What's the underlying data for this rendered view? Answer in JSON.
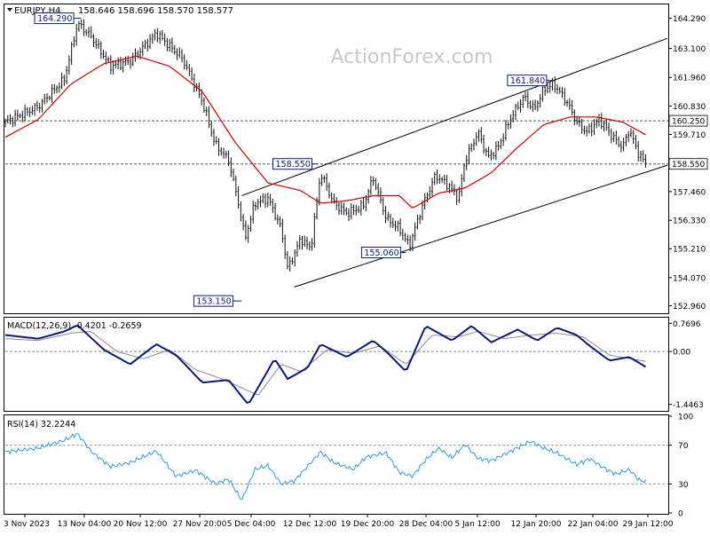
{
  "header": {
    "symbol": "EURJPY,H4",
    "ohlc": "158.646 158.696 158.570 158.577"
  },
  "watermark": "ActionForex.com",
  "colors": {
    "background": "#ffffff",
    "candle": "#111111",
    "ma": "#cc0000",
    "macd_main": "#0a1a7a",
    "macd_signal": "#8c8c8c",
    "rsi": "#3399e6",
    "label_box_fill": "#0a1e78",
    "grid_dash": "#555555",
    "watermark": "#c8c8c8"
  },
  "chart_data": [
    {
      "type": "candlestick",
      "panel": "price",
      "title": "EURJPY,H4",
      "y_ticks": [
        "164.290",
        "163.100",
        "161.960",
        "160.830",
        "159.710",
        "158.550",
        "157.460",
        "156.330",
        "155.210",
        "154.070",
        "152.960"
      ],
      "ylim": [
        152.7,
        164.8
      ],
      "x_ticks": [
        "3 Nov 2023",
        "13 Nov 04:00",
        "20 Nov 12:00",
        "27 Nov 20:00",
        "5 Dec 04:00",
        "12 Dec 12:00",
        "19 Dec 20:00",
        "28 Dec 04:00",
        "5 Jan 12:00",
        "12 Jan 20:00",
        "22 Jan 04:00",
        "29 Jan 12:00"
      ],
      "key_points": [
        {
          "label": "164.290",
          "value": 164.29,
          "bar": 0.115
        },
        {
          "label": "153.150",
          "value": 153.15,
          "bar": 0.36
        },
        {
          "label": "158.550",
          "value": 158.55,
          "bar": 0.475
        },
        {
          "label": "155.060",
          "value": 155.06,
          "bar": 0.61
        },
        {
          "label": "161.840",
          "value": 161.84,
          "bar": 0.835
        }
      ],
      "horizontal_levels": [
        {
          "label": "160.250",
          "value": 160.25
        },
        {
          "label": "158.550",
          "value": 158.55
        }
      ],
      "channel": {
        "upper": [
          [
            0.36,
            157.3
          ],
          [
            1.0,
            163.5
          ]
        ],
        "lower": [
          [
            0.44,
            153.7
          ],
          [
            1.0,
            158.5
          ]
        ]
      },
      "waypoints": [
        [
          0.0,
          160.2
        ],
        [
          0.05,
          160.8
        ],
        [
          0.09,
          161.9
        ],
        [
          0.11,
          164.1
        ],
        [
          0.13,
          163.6
        ],
        [
          0.16,
          162.4
        ],
        [
          0.19,
          162.6
        ],
        [
          0.23,
          163.7
        ],
        [
          0.27,
          162.7
        ],
        [
          0.3,
          161.0
        ],
        [
          0.32,
          159.3
        ],
        [
          0.34,
          158.7
        ],
        [
          0.355,
          157.0
        ],
        [
          0.365,
          155.6
        ],
        [
          0.38,
          157.0
        ],
        [
          0.4,
          157.2
        ],
        [
          0.42,
          156.0
        ],
        [
          0.43,
          154.4
        ],
        [
          0.45,
          155.6
        ],
        [
          0.465,
          155.2
        ],
        [
          0.48,
          158.2
        ],
        [
          0.5,
          157.0
        ],
        [
          0.52,
          156.6
        ],
        [
          0.545,
          156.9
        ],
        [
          0.56,
          158.0
        ],
        [
          0.58,
          156.4
        ],
        [
          0.6,
          156.0
        ],
        [
          0.615,
          155.3
        ],
        [
          0.635,
          156.9
        ],
        [
          0.655,
          158.1
        ],
        [
          0.675,
          157.7
        ],
        [
          0.69,
          157.2
        ],
        [
          0.7,
          158.7
        ],
        [
          0.72,
          159.8
        ],
        [
          0.735,
          158.8
        ],
        [
          0.75,
          159.2
        ],
        [
          0.77,
          160.4
        ],
        [
          0.79,
          161.2
        ],
        [
          0.805,
          160.7
        ],
        [
          0.82,
          161.5
        ],
        [
          0.835,
          161.7
        ],
        [
          0.855,
          161.0
        ],
        [
          0.87,
          160.2
        ],
        [
          0.885,
          159.8
        ],
        [
          0.905,
          160.3
        ],
        [
          0.925,
          159.6
        ],
        [
          0.94,
          159.2
        ],
        [
          0.95,
          159.9
        ],
        [
          0.965,
          158.9
        ],
        [
          0.975,
          158.6
        ]
      ],
      "ma_waypoints": [
        [
          0.0,
          159.6
        ],
        [
          0.05,
          160.3
        ],
        [
          0.1,
          161.7
        ],
        [
          0.15,
          162.5
        ],
        [
          0.2,
          162.8
        ],
        [
          0.25,
          162.4
        ],
        [
          0.3,
          161.4
        ],
        [
          0.35,
          159.4
        ],
        [
          0.4,
          157.8
        ],
        [
          0.45,
          157.5
        ],
        [
          0.48,
          157.0
        ],
        [
          0.52,
          157.1
        ],
        [
          0.56,
          157.3
        ],
        [
          0.6,
          157.3
        ],
        [
          0.62,
          156.8
        ],
        [
          0.66,
          157.4
        ],
        [
          0.7,
          157.6
        ],
        [
          0.74,
          158.2
        ],
        [
          0.78,
          159.2
        ],
        [
          0.82,
          160.1
        ],
        [
          0.86,
          160.4
        ],
        [
          0.9,
          160.4
        ],
        [
          0.94,
          160.2
        ],
        [
          0.975,
          159.7
        ]
      ]
    },
    {
      "type": "line",
      "panel": "macd",
      "title": "MACD(12,26,9) -0.4201 -0.2659",
      "y_ticks": [
        "0.7696",
        "0.00",
        "-1.4463"
      ],
      "ylim": [
        -1.6,
        0.9
      ],
      "series": [
        {
          "name": "MACD",
          "waypoints": [
            [
              0.0,
              0.45
            ],
            [
              0.05,
              0.35
            ],
            [
              0.09,
              0.55
            ],
            [
              0.11,
              0.72
            ],
            [
              0.15,
              0.05
            ],
            [
              0.19,
              -0.35
            ],
            [
              0.23,
              0.2
            ],
            [
              0.26,
              -0.1
            ],
            [
              0.3,
              -0.85
            ],
            [
              0.34,
              -0.78
            ],
            [
              0.37,
              -1.45
            ],
            [
              0.41,
              -0.2
            ],
            [
              0.43,
              -0.75
            ],
            [
              0.46,
              -0.45
            ],
            [
              0.48,
              0.2
            ],
            [
              0.52,
              -0.15
            ],
            [
              0.56,
              0.3
            ],
            [
              0.58,
              0.0
            ],
            [
              0.61,
              -0.55
            ],
            [
              0.64,
              0.7
            ],
            [
              0.68,
              0.3
            ],
            [
              0.71,
              0.7
            ],
            [
              0.74,
              0.25
            ],
            [
              0.78,
              0.6
            ],
            [
              0.81,
              0.3
            ],
            [
              0.84,
              0.65
            ],
            [
              0.87,
              0.45
            ],
            [
              0.89,
              0.15
            ],
            [
              0.92,
              -0.25
            ],
            [
              0.95,
              -0.15
            ],
            [
              0.975,
              -0.42
            ]
          ]
        },
        {
          "name": "Signal",
          "waypoints": [
            [
              0.0,
              0.35
            ],
            [
              0.05,
              0.3
            ],
            [
              0.1,
              0.5
            ],
            [
              0.13,
              0.55
            ],
            [
              0.17,
              0.0
            ],
            [
              0.21,
              -0.2
            ],
            [
              0.25,
              0.05
            ],
            [
              0.29,
              -0.5
            ],
            [
              0.33,
              -0.75
            ],
            [
              0.385,
              -1.2
            ],
            [
              0.42,
              -0.35
            ],
            [
              0.45,
              -0.55
            ],
            [
              0.49,
              0.05
            ],
            [
              0.53,
              -0.05
            ],
            [
              0.57,
              0.15
            ],
            [
              0.61,
              -0.35
            ],
            [
              0.65,
              0.45
            ],
            [
              0.69,
              0.4
            ],
            [
              0.72,
              0.55
            ],
            [
              0.76,
              0.35
            ],
            [
              0.8,
              0.45
            ],
            [
              0.84,
              0.5
            ],
            [
              0.88,
              0.4
            ],
            [
              0.92,
              -0.1
            ],
            [
              0.975,
              -0.27
            ]
          ]
        }
      ]
    },
    {
      "type": "line",
      "panel": "rsi",
      "title": "RSI(14) 32.2244",
      "y_ticks": [
        "100",
        "70",
        "30",
        "0"
      ],
      "ylim": [
        0,
        100
      ],
      "levels": [
        70,
        30
      ],
      "series": [
        {
          "name": "RSI",
          "waypoints": [
            [
              0.0,
              63
            ],
            [
              0.05,
              67
            ],
            [
              0.09,
              75
            ],
            [
              0.11,
              82
            ],
            [
              0.13,
              64
            ],
            [
              0.16,
              48
            ],
            [
              0.19,
              52
            ],
            [
              0.23,
              64
            ],
            [
              0.26,
              38
            ],
            [
              0.29,
              44
            ],
            [
              0.32,
              30
            ],
            [
              0.34,
              35
            ],
            [
              0.36,
              13
            ],
            [
              0.38,
              45
            ],
            [
              0.4,
              49
            ],
            [
              0.42,
              30
            ],
            [
              0.44,
              33
            ],
            [
              0.46,
              48
            ],
            [
              0.48,
              63
            ],
            [
              0.5,
              52
            ],
            [
              0.53,
              45
            ],
            [
              0.55,
              58
            ],
            [
              0.58,
              62
            ],
            [
              0.6,
              42
            ],
            [
              0.62,
              38
            ],
            [
              0.64,
              55
            ],
            [
              0.66,
              67
            ],
            [
              0.68,
              57
            ],
            [
              0.7,
              71
            ],
            [
              0.72,
              56
            ],
            [
              0.74,
              54
            ],
            [
              0.77,
              64
            ],
            [
              0.8,
              74
            ],
            [
              0.82,
              67
            ],
            [
              0.84,
              62
            ],
            [
              0.87,
              50
            ],
            [
              0.89,
              56
            ],
            [
              0.91,
              47
            ],
            [
              0.93,
              40
            ],
            [
              0.95,
              45
            ],
            [
              0.965,
              34
            ],
            [
              0.975,
              32
            ]
          ]
        }
      ]
    }
  ]
}
